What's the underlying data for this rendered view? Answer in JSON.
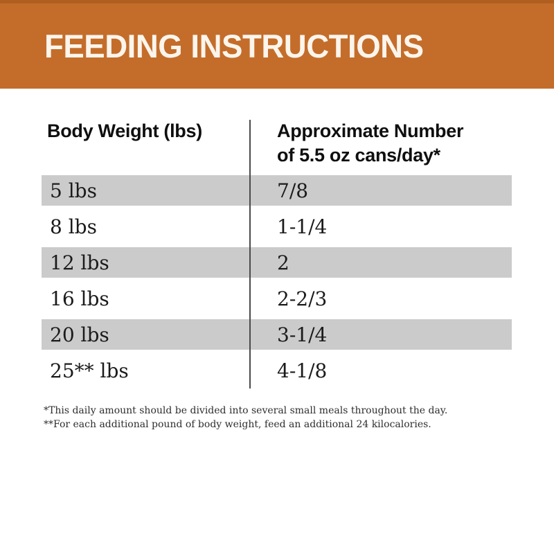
{
  "header": {
    "title": "FEEDING INSTRUCTIONS",
    "background_color": "#C46D2B",
    "top_strip_color": "#B05F20",
    "title_color": "#FBF5EC"
  },
  "table": {
    "column_headers": {
      "col1": "Body Weight (lbs)",
      "col2_line1": "Approximate Number",
      "col2_line2": "of 5.5 oz cans/day*"
    },
    "stripe_color": "#CBCBCB",
    "rows": [
      {
        "weight": "5 lbs",
        "cans_per_day": "7/8"
      },
      {
        "weight": "8 lbs",
        "cans_per_day": "1-1/4"
      },
      {
        "weight": "12 lbs",
        "cans_per_day": "2"
      },
      {
        "weight": "16 lbs",
        "cans_per_day": "2-2/3"
      },
      {
        "weight": "20 lbs",
        "cans_per_day": "3-1/4"
      },
      {
        "weight": "25** lbs",
        "cans_per_day": "4-1/8"
      }
    ]
  },
  "footnotes": {
    "note1": "*This daily amount should be divided into several small meals throughout the day.",
    "note2": "**For each additional pound of body weight, feed an additional 24 kilocalories."
  }
}
